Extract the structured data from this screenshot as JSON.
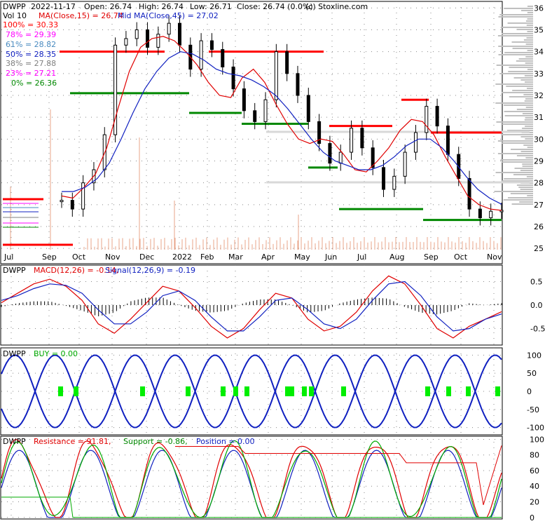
{
  "header": {
    "symbol": "DWPP",
    "date": "2022-11-17",
    "open_label": "Open: 26.74",
    "high_label": "High: 26.74",
    "low_label": "Low: 26.71",
    "close_label": "Close: 26.74 (0.0%)",
    "credit": "(c) Stoxline.com"
  },
  "legend": {
    "vol": "Vol 10",
    "ma_short": "MA(Close,15) = 26.74",
    "ma_mid": "Mid MA(Close,45) = 27.02"
  },
  "colors": {
    "ma_short": "#e00000",
    "ma_mid": "#1020c0",
    "resistance": "#ff0000",
    "support": "#008800",
    "volume": "#e8a58a",
    "profile": "#c0c0c0",
    "buy_marker": "#00ee00",
    "grid": "#888888"
  },
  "fib_levels": [
    {
      "label": "100% = 30.33",
      "color": "#ff0000"
    },
    {
      "label": "78% = 29.39",
      "color": "#ff00ff"
    },
    {
      "label": "61% = 28.82",
      "color": "#4a8bc0"
    },
    {
      "label": "50% = 28.35",
      "color": "#1020c0"
    },
    {
      "label": "38% = 27.88",
      "color": "#808080"
    },
    {
      "label": "23% = 27.21",
      "color": "#ff00ff"
    },
    {
      "label": "0% = 26.36",
      "color": "#008800"
    }
  ],
  "chart_data": [
    {
      "type": "candlestick",
      "title": "DWPP 2022-11-17 Open: 26.74 High: 26.74 Low: 26.71 Close: 26.74 (0.0%)",
      "x_ticks": [
        "Jul",
        "Sep",
        "Oct",
        "Nov",
        "Dec",
        "2022",
        "Feb",
        "Mar",
        "Apr",
        "May",
        "Jun",
        "Jul",
        "Aug",
        "Sep",
        "Oct",
        "Nov"
      ],
      "y_ticks": [
        25,
        26,
        27,
        28,
        29,
        30,
        31,
        32,
        33,
        34,
        35,
        36
      ],
      "ylim": [
        24.3,
        36.3
      ],
      "close_series": [
        27.2,
        26.8,
        28.0,
        28.6,
        30.2,
        34.3,
        34.6,
        35.0,
        34.2,
        34.8,
        35.3,
        34.3,
        33.2,
        34.5,
        34.1,
        33.3,
        32.3,
        31.3,
        30.8,
        31.8,
        34.0,
        33.0,
        32.0,
        30.8,
        29.8,
        28.9,
        29.4,
        30.5,
        29.6,
        28.7,
        27.7,
        28.3,
        29.4,
        30.3,
        31.5,
        30.6,
        29.3,
        28.2,
        26.8,
        26.4,
        26.7,
        26.74
      ],
      "ma_short": [
        27.4,
        27.3,
        27.8,
        28.4,
        29.6,
        31.4,
        33.1,
        34.2,
        34.6,
        34.7,
        34.5,
        34.0,
        33.4,
        32.6,
        32.0,
        31.9,
        32.8,
        33.2,
        32.6,
        31.6,
        30.7,
        30.0,
        29.8,
        30.0,
        29.9,
        29.3,
        28.6,
        28.5,
        29.0,
        29.6,
        30.4,
        30.9,
        30.8,
        30.2,
        29.2,
        28.3,
        27.4,
        27.0,
        26.8,
        26.74
      ],
      "ma_mid": [
        27.6,
        27.6,
        27.8,
        28.2,
        28.9,
        30.0,
        31.2,
        32.3,
        33.1,
        33.7,
        34.0,
        33.9,
        33.6,
        33.2,
        33.0,
        32.9,
        32.7,
        32.4,
        32.0,
        31.4,
        30.7,
        30.0,
        29.4,
        29.0,
        28.8,
        28.6,
        28.6,
        28.8,
        29.2,
        29.7,
        30.0,
        30.0,
        29.6,
        29.0,
        28.3,
        27.7,
        27.3,
        27.02
      ],
      "resistance_segments": [
        {
          "start": "Sep",
          "end": "Dec",
          "value": 34.0
        },
        {
          "start": "Mar",
          "end": "May",
          "value": 34.0
        },
        {
          "start": "Jun",
          "end": "Jul",
          "value": 30.6
        },
        {
          "start": "Aug",
          "end": "Aug",
          "value": 31.8
        },
        {
          "start": "Sep",
          "end": "Nov",
          "value": 30.3
        }
      ],
      "support_segments": [
        {
          "start": "Sep",
          "end": "Dec",
          "value": 32.1
        },
        {
          "start": "2022",
          "end": "Mar",
          "value": 31.2
        },
        {
          "start": "Mar",
          "end": "May",
          "value": 30.7
        },
        {
          "start": "May",
          "end": "Jun",
          "value": 28.7
        },
        {
          "start": "Jun",
          "end": "Sep",
          "value": 26.8
        },
        {
          "start": "Sep",
          "end": "Nov",
          "value": 26.3
        }
      ],
      "volume_spikes": [
        "Dec",
        "2022",
        "May",
        "Jul",
        "Sep"
      ]
    },
    {
      "type": "line",
      "title": "DWPP - MACD(12,26) = -0.14, Signal(12,26,9) = -0.19",
      "y_ticks": [
        0.5,
        0.0,
        -0.5
      ],
      "ylim": [
        -0.85,
        0.85
      ],
      "macd": [
        0.05,
        0.25,
        0.45,
        0.55,
        0.4,
        0.1,
        -0.4,
        -0.6,
        -0.3,
        0.05,
        0.4,
        0.3,
        -0.05,
        -0.45,
        -0.7,
        -0.5,
        -0.1,
        0.25,
        0.15,
        -0.3,
        -0.55,
        -0.45,
        -0.15,
        0.3,
        0.62,
        0.45,
        0.0,
        -0.5,
        -0.7,
        -0.45,
        -0.3,
        -0.14
      ],
      "signal": [
        0.1,
        0.2,
        0.35,
        0.45,
        0.42,
        0.25,
        -0.1,
        -0.4,
        -0.4,
        -0.15,
        0.2,
        0.3,
        0.1,
        -0.25,
        -0.55,
        -0.55,
        -0.25,
        0.1,
        0.15,
        -0.1,
        -0.4,
        -0.5,
        -0.3,
        0.1,
        0.45,
        0.5,
        0.2,
        -0.25,
        -0.55,
        -0.5,
        -0.3,
        -0.19
      ]
    },
    {
      "type": "line",
      "title": "DWPP - BUY = 0.00",
      "y_ticks": [
        100,
        50,
        0,
        -50,
        -100
      ],
      "ylim": [
        -120,
        120
      ]
    },
    {
      "type": "line",
      "title": "DWPP - Resistance = 91.81, Support = -0.86, Position = 0.00",
      "y_ticks": [
        100,
        80,
        60,
        40,
        20,
        0
      ],
      "ylim": [
        -2,
        104
      ]
    }
  ]
}
